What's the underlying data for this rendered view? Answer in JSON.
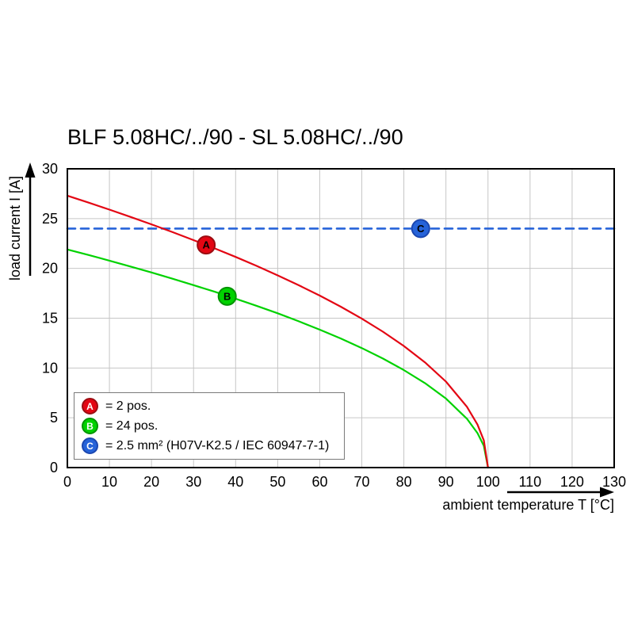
{
  "title": "BLF 5.08HC/../90 - SL 5.08HC/../90",
  "chart_data": {
    "type": "line",
    "title": "BLF 5.08HC/../90 - SL 5.08HC/../90",
    "xlabel": "ambient temperature T [°C]",
    "ylabel": "load current I [A]",
    "xlim": [
      0,
      130
    ],
    "ylim": [
      0,
      30
    ],
    "x_ticks": [
      0,
      10,
      20,
      30,
      40,
      50,
      60,
      70,
      80,
      90,
      100,
      110,
      120,
      130
    ],
    "y_ticks": [
      0,
      5,
      10,
      15,
      20,
      25,
      30
    ],
    "grid": true,
    "grid_color": "#c6c6c6",
    "frame_color": "#000000",
    "series": [
      {
        "name": "A",
        "label": "2 pos.",
        "color": "#e30613",
        "edge_color": "#9b0d12",
        "style": "solid",
        "points": [
          [
            0,
            27.3
          ],
          [
            5,
            26.61
          ],
          [
            10,
            25.9
          ],
          [
            15,
            25.17
          ],
          [
            20,
            24.42
          ],
          [
            25,
            23.64
          ],
          [
            30,
            22.84
          ],
          [
            35,
            22.01
          ],
          [
            40,
            21.15
          ],
          [
            45,
            20.25
          ],
          [
            50,
            19.3
          ],
          [
            55,
            18.31
          ],
          [
            60,
            17.27
          ],
          [
            65,
            16.15
          ],
          [
            70,
            14.95
          ],
          [
            75,
            13.65
          ],
          [
            80,
            12.21
          ],
          [
            85,
            10.57
          ],
          [
            90,
            8.63
          ],
          [
            95,
            6.1
          ],
          [
            97.5,
            4.32
          ],
          [
            99,
            2.73
          ],
          [
            100,
            0
          ]
        ]
      },
      {
        "name": "B",
        "label": "24 pos.",
        "color": "#00d200",
        "edge_color": "#009400",
        "style": "solid",
        "points": [
          [
            0,
            21.9
          ],
          [
            5,
            21.35
          ],
          [
            10,
            20.78
          ],
          [
            15,
            20.19
          ],
          [
            20,
            19.59
          ],
          [
            25,
            18.96
          ],
          [
            30,
            18.32
          ],
          [
            35,
            17.66
          ],
          [
            40,
            16.96
          ],
          [
            45,
            16.24
          ],
          [
            50,
            15.49
          ],
          [
            55,
            14.69
          ],
          [
            60,
            13.85
          ],
          [
            65,
            12.96
          ],
          [
            70,
            12.0
          ],
          [
            75,
            10.95
          ],
          [
            80,
            9.79
          ],
          [
            85,
            8.48
          ],
          [
            90,
            6.93
          ],
          [
            95,
            4.9
          ],
          [
            97.5,
            3.46
          ],
          [
            99,
            2.19
          ],
          [
            100,
            0
          ]
        ]
      },
      {
        "name": "C",
        "label": "2.5 mm² (H07V-K2.5 / IEC 60947-7-1)",
        "color": "#2663d9",
        "edge_color": "#1b47b0",
        "style": "dashed",
        "points": [
          [
            0,
            24
          ],
          [
            130,
            24
          ]
        ]
      }
    ],
    "markers": [
      {
        "label": "A",
        "x": 33,
        "y": 22.35,
        "color": "#e30613",
        "edge": "#9b0d12"
      },
      {
        "label": "B",
        "x": 38,
        "y": 17.2,
        "color": "#00d200",
        "edge": "#009400"
      },
      {
        "label": "C",
        "x": 84,
        "y": 24,
        "color": "#2663d9",
        "edge": "#1b47b0"
      }
    ],
    "legend": [
      {
        "label": "A",
        "text": "= 2 pos."
      },
      {
        "label": "B",
        "text": "= 24 pos."
      },
      {
        "label": "C",
        "text": "= 2.5 mm² (H07V-K2.5 / IEC 60947-7-1)"
      }
    ]
  }
}
